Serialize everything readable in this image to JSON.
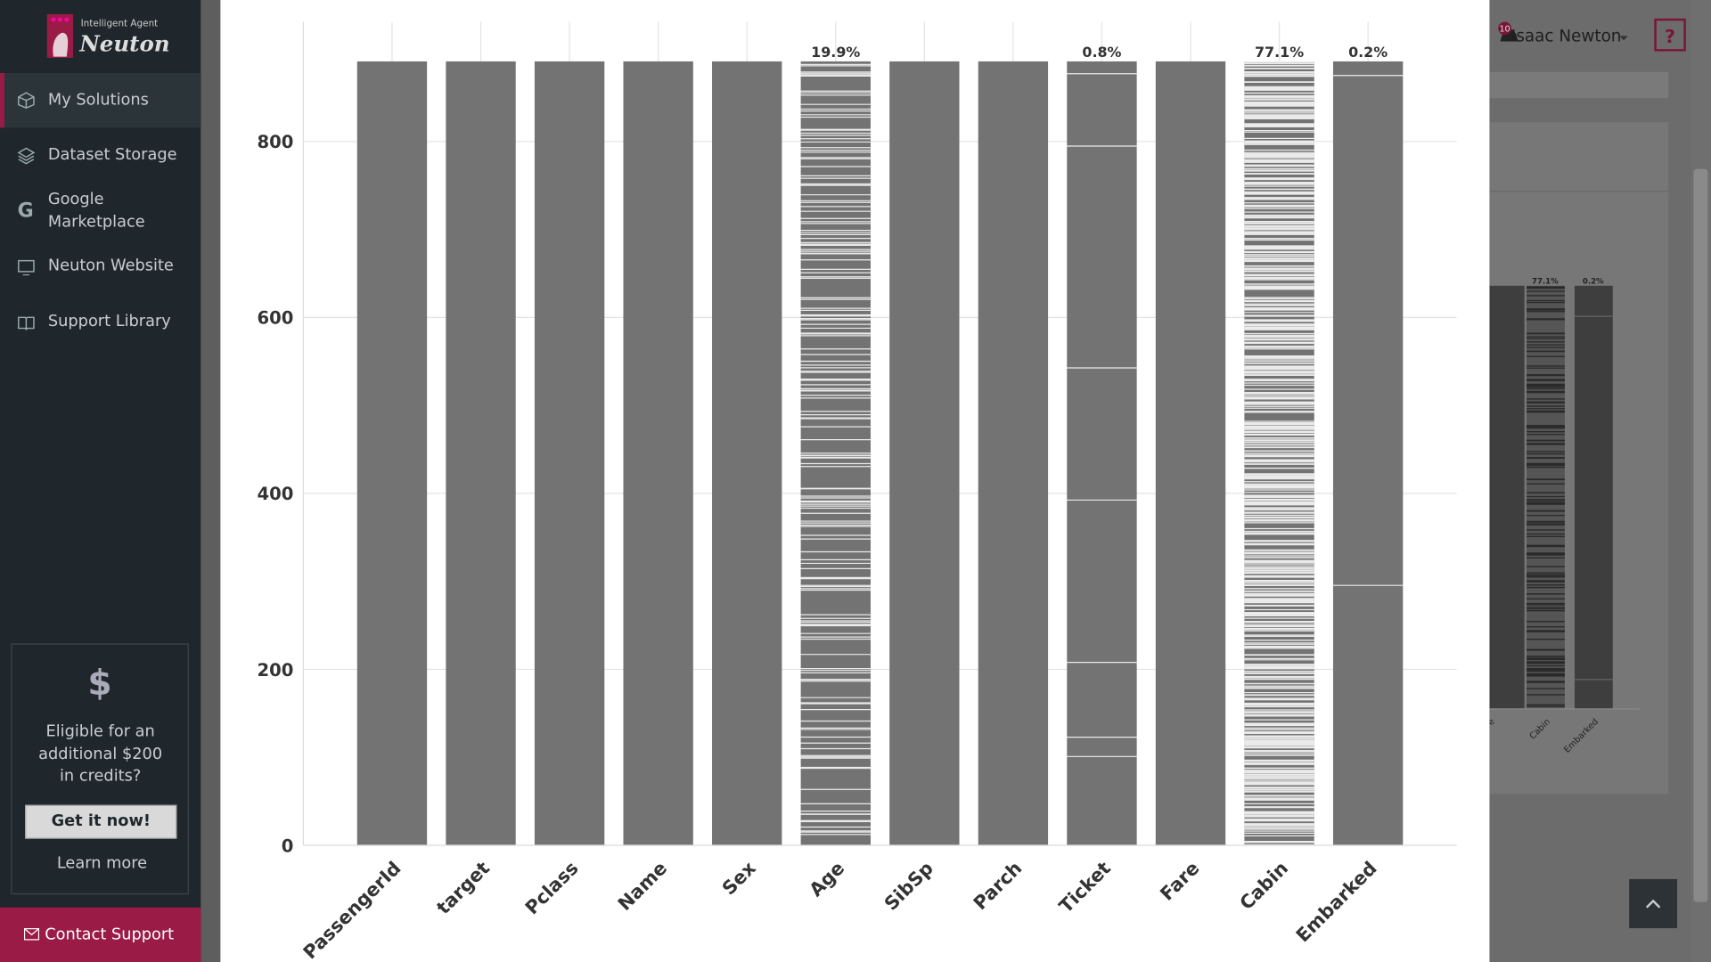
{
  "sidebar": {
    "logo_small": "Intelligent Agent",
    "logo": "Neuton",
    "items": [
      "My Solutions",
      "Dataset Storage",
      "Google Marketplace",
      "Neuton Website",
      "Support Library"
    ],
    "promo": {
      "icon": "$",
      "text": "Eligible for an additional $200 in credits?",
      "button": "Get it now!",
      "link": "Learn more"
    },
    "contact": "Contact Support"
  },
  "header": {
    "notifications": "10",
    "user": "Isaac Newton",
    "help": "?"
  },
  "background_chart": {
    "labels": [
      "77.1%",
      "0.2%"
    ],
    "categories": [
      "are",
      "Cabin",
      "Embarked"
    ]
  },
  "chart_data": {
    "type": "bar",
    "categories": [
      "PassengerId",
      "target",
      "Pclass",
      "Name",
      "Sex",
      "Age",
      "SibSp",
      "Parch",
      "Ticket",
      "Fare",
      "Cabin",
      "Embarked"
    ],
    "values": [
      891,
      891,
      891,
      891,
      891,
      891,
      891,
      891,
      891,
      891,
      891,
      891
    ],
    "missing": [
      0,
      0,
      0,
      0,
      0,
      19.9,
      0,
      0,
      0.8,
      0,
      77.1,
      0.2
    ],
    "missing_labels": [
      null,
      null,
      null,
      null,
      null,
      "19.9%",
      null,
      null,
      "0.8%",
      null,
      "77.1%",
      "0.2%"
    ],
    "color": "#737373",
    "ylim": [
      0,
      936
    ],
    "yticks": [
      0,
      200,
      400,
      600,
      800
    ],
    "grid": true
  }
}
